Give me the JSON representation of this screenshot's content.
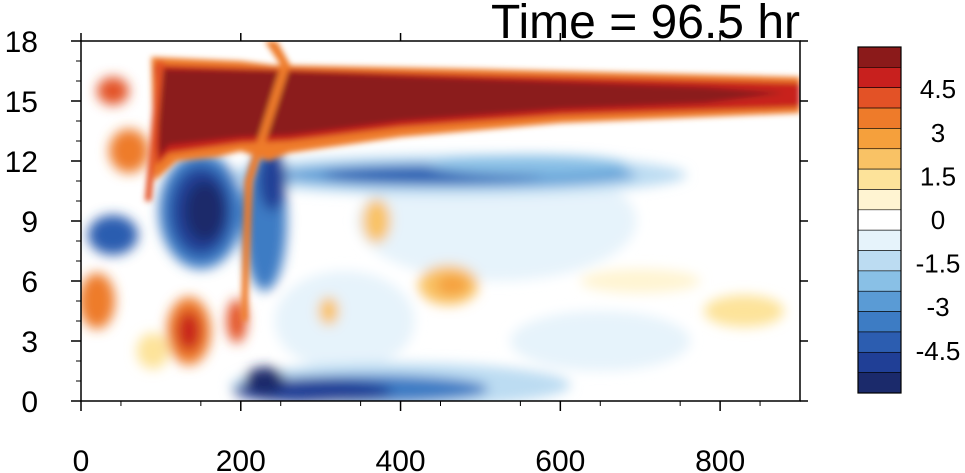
{
  "chart_data": {
    "type": "heatmap",
    "title": "Time = 96.5 hr",
    "xlabel": "",
    "ylabel": "",
    "xlim": [
      0,
      900
    ],
    "ylim": [
      0,
      18
    ],
    "x_ticks": [
      0,
      200,
      400,
      600,
      800
    ],
    "y_ticks": [
      0,
      3,
      6,
      9,
      12,
      15,
      18
    ],
    "grid": false,
    "colorbar": {
      "placement": "right",
      "levels": [
        -5.25,
        -4.5,
        -3.75,
        -3,
        -2.25,
        -1.5,
        -0.75,
        0,
        0.75,
        1.5,
        2.25,
        3,
        3.75,
        4.5,
        5.25
      ],
      "labels": [
        "4.5",
        "3",
        "1.5",
        "0",
        "-1.5",
        "-3",
        "-4.5"
      ],
      "label_values": [
        4.5,
        3,
        1.5,
        0,
        -1.5,
        -3,
        -4.5
      ],
      "colors": [
        "#1b2a6b",
        "#203f96",
        "#2c5db0",
        "#3d7cc4",
        "#5a9bd5",
        "#89c0e6",
        "#bcdcf2",
        "#e6f3fb",
        "#ffffff",
        "#fff4d2",
        "#fde39a",
        "#f9c265",
        "#f5a03c",
        "#ee7b2a",
        "#e35226",
        "#c8201e",
        "#8b1a1a"
      ]
    },
    "features": [
      {
        "name": "upper positive band",
        "x_range": [
          90,
          900
        ],
        "y_center": 15.2,
        "value": 5.5
      },
      {
        "name": "negative band below",
        "x_range": [
          250,
          700
        ],
        "y_center": 11.3,
        "value": -2.5
      },
      {
        "name": "low-level negative",
        "x_range": [
          200,
          520
        ],
        "y_center": 0.5,
        "value": -4.5
      },
      {
        "name": "left negative core",
        "x_range": [
          80,
          190
        ],
        "y_center": 8.5,
        "value": -5.5
      },
      {
        "name": "front line",
        "x_range": [
          180,
          260
        ],
        "y_range": [
          2,
          18
        ],
        "value": 3
      }
    ]
  }
}
